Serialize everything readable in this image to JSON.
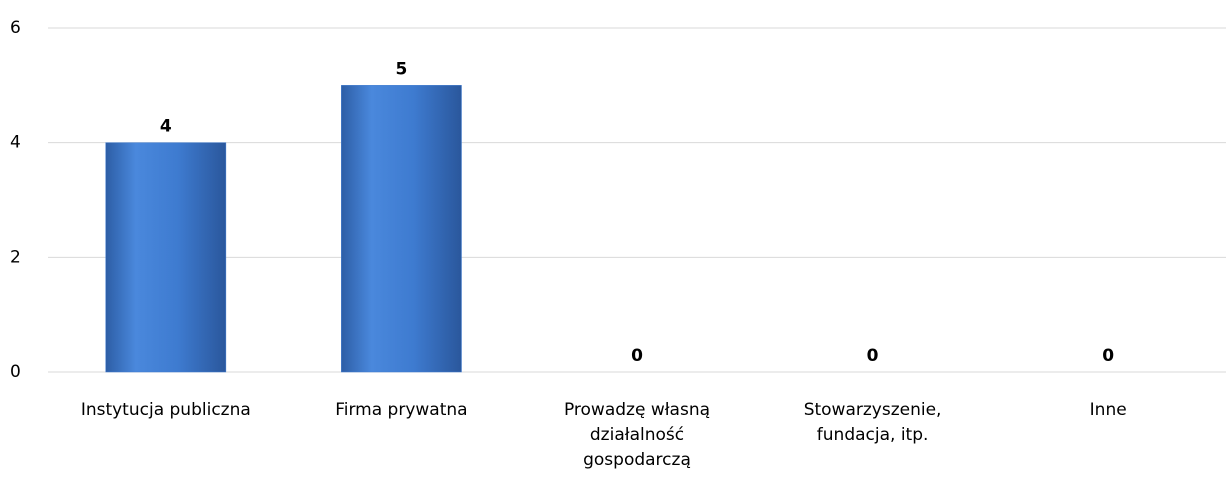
{
  "chart_data": {
    "type": "bar",
    "categories": [
      "Instytucja publiczna",
      "Firma prywatna",
      "Prowadzę własną działalność gospodarczą",
      "Stowarzyszenie, fundacja, itp.",
      "Inne"
    ],
    "values": [
      4,
      5,
      0,
      0,
      0
    ],
    "color": "#3f7bd0",
    "ylim": [
      0,
      6
    ],
    "yticks": [
      0,
      2,
      4,
      6
    ],
    "grid": true
  }
}
